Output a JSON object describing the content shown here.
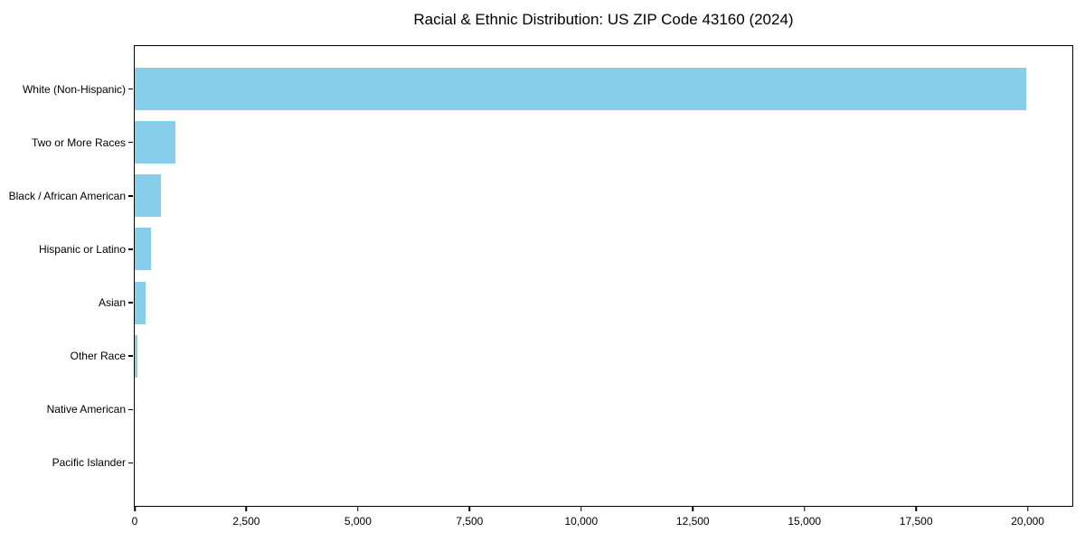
{
  "chart_data": {
    "type": "bar",
    "orientation": "horizontal",
    "title": "Racial & Ethnic Distribution: US ZIP Code 43160 (2024)",
    "categories": [
      "White (Non-Hispanic)",
      "Two or More Races",
      "Black / African American",
      "Hispanic or Latino",
      "Asian",
      "Other Race",
      "Native American",
      "Pacific Islander"
    ],
    "values": [
      19970,
      910,
      580,
      365,
      250,
      60,
      0,
      0
    ],
    "xlabel": "",
    "ylabel": "",
    "xlim": [
      0,
      21000
    ],
    "xticks": [
      0,
      2500,
      5000,
      7500,
      10000,
      12500,
      15000,
      17500,
      20000
    ],
    "xtick_labels": [
      "0",
      "2,500",
      "5,000",
      "7,500",
      "10,000",
      "12,500",
      "15,000",
      "17,500",
      "20,000"
    ],
    "bar_color": "#87CEEB",
    "background_color": "#ffffff",
    "text_color": "#000000",
    "grid": false,
    "legend": null
  }
}
